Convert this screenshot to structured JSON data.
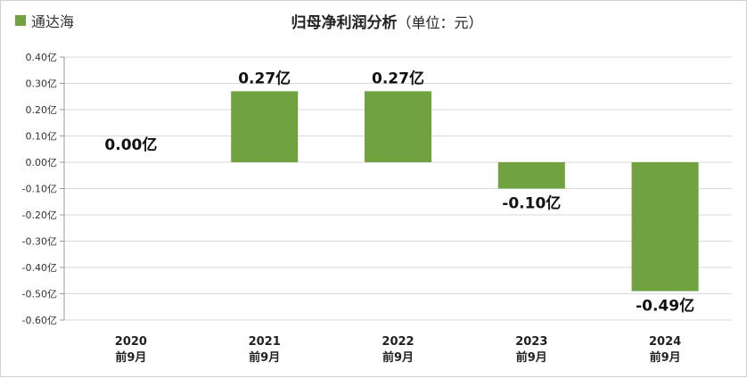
{
  "legend": {
    "label": "通达海",
    "color": "#70A23F"
  },
  "title": {
    "main": "归母净利润分析",
    "sub": "（单位：元）"
  },
  "chart_data": {
    "type": "bar",
    "categories": [
      [
        "2020",
        "前9月"
      ],
      [
        "2021",
        "前9月"
      ],
      [
        "2022",
        "前9月"
      ],
      [
        "2023",
        "前9月"
      ],
      [
        "2024",
        "前9月"
      ]
    ],
    "series": [
      {
        "name": "通达海",
        "values": [
          0.0,
          0.27,
          0.27,
          -0.1,
          -0.49
        ],
        "color": "#70A23F"
      }
    ],
    "data_labels": [
      "0.00亿",
      "0.27亿",
      "0.27亿",
      "-0.10亿",
      "-0.49亿"
    ],
    "y_ticks": [
      0.4,
      0.3,
      0.2,
      0.1,
      0.0,
      -0.1,
      -0.2,
      -0.3,
      -0.4,
      -0.5,
      -0.6
    ],
    "y_tick_labels": [
      "0.40亿",
      "0.30亿",
      "0.20亿",
      "0.10亿",
      "0.00亿",
      "-0.10亿",
      "-0.20亿",
      "-0.30亿",
      "-0.40亿",
      "-0.50亿",
      "-0.60亿"
    ],
    "ylim": [
      -0.6,
      0.4
    ],
    "grid": true,
    "legend_position": "top-left"
  }
}
